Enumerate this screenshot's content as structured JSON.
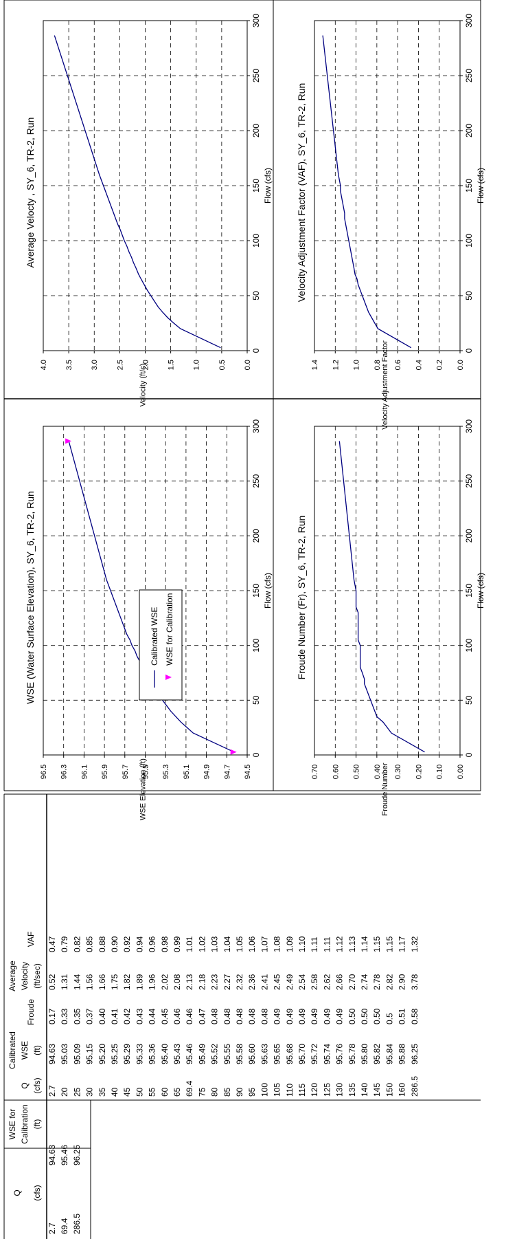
{
  "cal_table": {
    "headers": [
      [
        "Q",
        "(cfs)"
      ],
      [
        "WSE for",
        "Calibration",
        "(ft)"
      ]
    ],
    "rows": [
      [
        "2.7",
        "94.63"
      ],
      [
        "69.4",
        "95.46"
      ],
      [
        "286.5",
        "96.25"
      ]
    ]
  },
  "main_table": {
    "headers": [
      [
        "Q",
        "(cfs)"
      ],
      [
        "Calibrated",
        "WSE",
        "(ft)"
      ],
      [
        "Froude"
      ],
      [
        "Average",
        "Velocity",
        "(ft/sec)"
      ],
      [
        "VAF"
      ]
    ],
    "rows": [
      [
        "2.7",
        "94.63",
        "0.17",
        "0.52",
        "0.47"
      ],
      [
        "20",
        "95.03",
        "0.33",
        "1.31",
        "0.79"
      ],
      [
        "25",
        "95.09",
        "0.35",
        "1.44",
        "0.82"
      ],
      [
        "30",
        "95.15",
        "0.37",
        "1.56",
        "0.85"
      ],
      [
        "35",
        "95.20",
        "0.40",
        "1.66",
        "0.88"
      ],
      [
        "40",
        "95.25",
        "0.41",
        "1.75",
        "0.90"
      ],
      [
        "45",
        "95.29",
        "0.42",
        "1.82",
        "0.92"
      ],
      [
        "50",
        "95.33",
        "0.43",
        "1.89",
        "0.94"
      ],
      [
        "55",
        "95.36",
        "0.44",
        "1.96",
        "0.96"
      ],
      [
        "60",
        "95.40",
        "0.45",
        "2.02",
        "0.98"
      ],
      [
        "65",
        "95.43",
        "0.46",
        "2.08",
        "0.99"
      ],
      [
        "69.4",
        "95.46",
        "0.46",
        "2.13",
        "1.01"
      ],
      [
        "75",
        "95.49",
        "0.47",
        "2.18",
        "1.02"
      ],
      [
        "80",
        "95.52",
        "0.48",
        "2.23",
        "1.03"
      ],
      [
        "85",
        "95.55",
        "0.48",
        "2.27",
        "1.04"
      ],
      [
        "90",
        "95.58",
        "0.48",
        "2.32",
        "1.05"
      ],
      [
        "95",
        "95.60",
        "0.48",
        "2.36",
        "1.06"
      ],
      [
        "100",
        "95.63",
        "0.48",
        "2.41",
        "1.07"
      ],
      [
        "105",
        "95.65",
        "0.49",
        "2.45",
        "1.08"
      ],
      [
        "110",
        "95.68",
        "0.49",
        "2.49",
        "1.09"
      ],
      [
        "115",
        "95.70",
        "0.49",
        "2.54",
        "1.10"
      ],
      [
        "120",
        "95.72",
        "0.49",
        "2.58",
        "1.11"
      ],
      [
        "125",
        "95.74",
        "0.49",
        "2.62",
        "1.11"
      ],
      [
        "130",
        "95.76",
        "0.49",
        "2.66",
        "1.12"
      ],
      [
        "135",
        "95.78",
        "0.50",
        "2.70",
        "1.13"
      ],
      [
        "140",
        "95.80",
        "0.50",
        "2.74",
        "1.14"
      ],
      [
        "145",
        "95.82",
        "0.50",
        "2.78",
        "1.15"
      ],
      [
        "150",
        "95.84",
        "0.5",
        "2.82",
        "1.15"
      ],
      [
        "160",
        "95.88",
        "0.51",
        "2.90",
        "1.17"
      ],
      [
        "286.5",
        "96.25",
        "0.58",
        "3.78",
        "1.32"
      ]
    ]
  },
  "chart_data": [
    {
      "type": "line",
      "title": "WSE (Water Surface Elevation), SY_6, TR-2, Run",
      "xlabel": "Flow (cfs)",
      "ylabel": "WSE Elevation (ft)",
      "xlim": [
        0,
        300
      ],
      "ylim": [
        94.5,
        96.5
      ],
      "xticks": [
        "0",
        "50",
        "100",
        "150",
        "200",
        "250",
        "300"
      ],
      "yticks": [
        "94.5",
        "94.7",
        "94.9",
        "95.1",
        "95.3",
        "95.5",
        "95.7",
        "95.9",
        "96.1",
        "96.3",
        "96.5"
      ],
      "grid": true,
      "legend": "right",
      "line_color": "#000080",
      "marker_color": "#ff00ff",
      "series": [
        {
          "name": "Calibrated WSE",
          "x": [
            2.7,
            20,
            25,
            30,
            35,
            40,
            45,
            50,
            55,
            60,
            65,
            69.4,
            75,
            80,
            85,
            90,
            95,
            100,
            105,
            110,
            115,
            120,
            125,
            130,
            135,
            140,
            145,
            150,
            160,
            286.5
          ],
          "y": [
            94.63,
            95.03,
            95.09,
            95.15,
            95.2,
            95.25,
            95.29,
            95.33,
            95.36,
            95.4,
            95.43,
            95.46,
            95.49,
            95.52,
            95.55,
            95.58,
            95.6,
            95.63,
            95.65,
            95.68,
            95.7,
            95.72,
            95.74,
            95.76,
            95.78,
            95.8,
            95.82,
            95.84,
            95.88,
            96.25
          ]
        },
        {
          "name": "WSE for Calibration",
          "x": [
            2.7,
            69.4,
            286.5
          ],
          "y": [
            94.63,
            95.46,
            96.25
          ]
        }
      ]
    },
    {
      "type": "line",
      "title": "Average Velocty , SY_6, TR-2, Run",
      "xlabel": "Flow (cfs)",
      "ylabel": "Velocity (ft/s)",
      "xlim": [
        0,
        300
      ],
      "ylim": [
        0,
        4
      ],
      "xticks": [
        "0",
        "50",
        "100",
        "150",
        "200",
        "250",
        "300"
      ],
      "yticks": [
        "0.0",
        "0.5",
        "1.0",
        "1.5",
        "2.0",
        "2.5",
        "3.0",
        "3.5",
        "4.0"
      ],
      "grid": true,
      "line_color": "#000080",
      "series": [
        {
          "x": [
            2.7,
            20,
            25,
            30,
            35,
            40,
            45,
            50,
            55,
            60,
            65,
            69.4,
            75,
            80,
            85,
            90,
            95,
            100,
            105,
            110,
            115,
            120,
            125,
            130,
            135,
            140,
            145,
            150,
            160,
            286.5
          ],
          "y": [
            0.52,
            1.31,
            1.44,
            1.56,
            1.66,
            1.75,
            1.82,
            1.89,
            1.96,
            2.02,
            2.08,
            2.13,
            2.18,
            2.23,
            2.27,
            2.32,
            2.36,
            2.41,
            2.45,
            2.49,
            2.54,
            2.58,
            2.62,
            2.66,
            2.7,
            2.74,
            2.78,
            2.82,
            2.9,
            3.78
          ]
        }
      ]
    },
    {
      "type": "line",
      "title": "Froude Number (Fr), SY_6, TR-2, Run",
      "xlabel": "Flow (cfs)",
      "ylabel": "Froude Number",
      "xlim": [
        0,
        300
      ],
      "ylim": [
        0,
        0.7
      ],
      "xticks": [
        "0",
        "50",
        "100",
        "150",
        "200",
        "250",
        "300"
      ],
      "yticks": [
        "0.00",
        "0.10",
        "0.20",
        "0.30",
        "0.40",
        "0.50",
        "0.60",
        "0.70"
      ],
      "grid": true,
      "line_color": "#000080",
      "series": [
        {
          "x": [
            2.7,
            20,
            25,
            30,
            35,
            40,
            45,
            50,
            55,
            60,
            65,
            69.4,
            75,
            80,
            85,
            90,
            95,
            100,
            105,
            110,
            115,
            120,
            125,
            130,
            135,
            140,
            145,
            150,
            160,
            286.5
          ],
          "y": [
            0.17,
            0.33,
            0.35,
            0.37,
            0.4,
            0.41,
            0.42,
            0.43,
            0.44,
            0.45,
            0.46,
            0.46,
            0.47,
            0.48,
            0.48,
            0.48,
            0.48,
            0.48,
            0.49,
            0.49,
            0.49,
            0.49,
            0.49,
            0.49,
            0.5,
            0.5,
            0.5,
            0.5,
            0.51,
            0.58
          ]
        }
      ]
    },
    {
      "type": "line",
      "title": "Velocity Adjustment Factor (VAF), SY_6, TR-2, Run",
      "xlabel": "Flow (cfs)",
      "ylabel": "Velocity Adjustment Factor",
      "xlim": [
        0,
        300
      ],
      "ylim": [
        0,
        1.4
      ],
      "xticks": [
        "0",
        "50",
        "100",
        "150",
        "200",
        "250",
        "300"
      ],
      "yticks": [
        "0.0",
        "0.2",
        "0.4",
        "0.6",
        "0.8",
        "1.0",
        "1.2",
        "1.4"
      ],
      "grid": true,
      "line_color": "#000080",
      "series": [
        {
          "x": [
            2.7,
            20,
            25,
            30,
            35,
            40,
            45,
            50,
            55,
            60,
            65,
            69.4,
            75,
            80,
            85,
            90,
            95,
            100,
            105,
            110,
            115,
            120,
            125,
            130,
            135,
            140,
            145,
            150,
            160,
            286.5
          ],
          "y": [
            0.47,
            0.79,
            0.82,
            0.85,
            0.88,
            0.9,
            0.92,
            0.94,
            0.96,
            0.98,
            0.99,
            1.01,
            1.02,
            1.03,
            1.04,
            1.05,
            1.06,
            1.07,
            1.08,
            1.09,
            1.1,
            1.11,
            1.11,
            1.12,
            1.13,
            1.14,
            1.15,
            1.15,
            1.17,
            1.32
          ]
        }
      ]
    }
  ]
}
